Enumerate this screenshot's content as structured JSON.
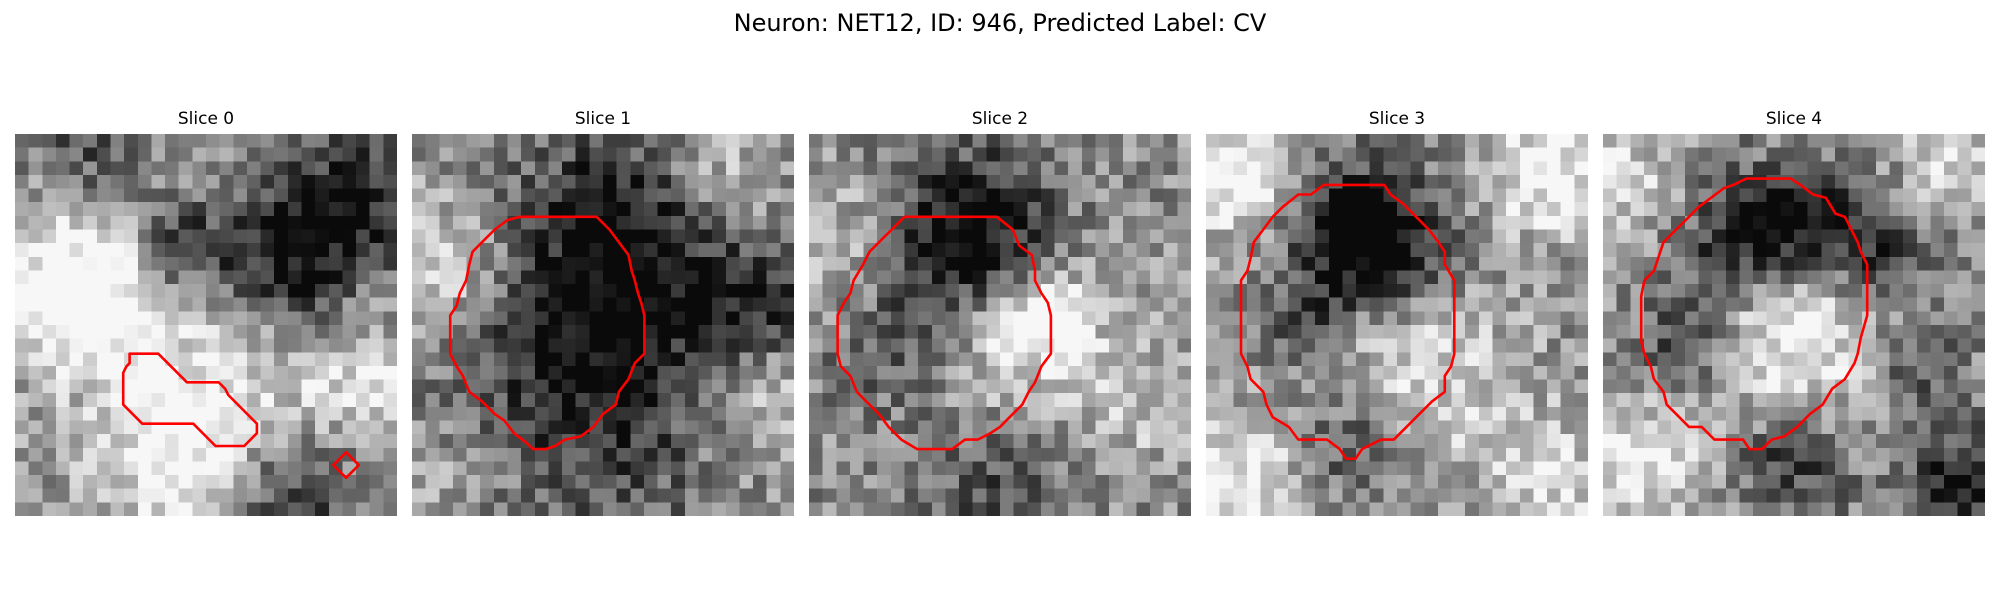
{
  "title": "Neuron: NET12, ID: 946, Predicted Label: CV",
  "contour_color": "#ff0000",
  "colormap": "gray",
  "grid_size": 28,
  "slices": [
    {
      "label": "Slice 0",
      "seed": 11,
      "blobs": [
        [
          0.2,
          0.38,
          0.18,
          0.4
        ],
        [
          0.16,
          0.42,
          0.1,
          0.3
        ],
        [
          0.6,
          0.7,
          0.25,
          0.35
        ],
        [
          0.45,
          0.85,
          0.15,
          0.35
        ],
        [
          0.7,
          0.35,
          0.14,
          -0.55
        ],
        [
          0.42,
          0.3,
          0.1,
          -0.4
        ],
        [
          0.88,
          0.18,
          0.12,
          -0.45
        ],
        [
          0.7,
          0.93,
          0.15,
          -0.5
        ],
        [
          0.18,
          0.06,
          0.1,
          -0.3
        ],
        [
          0.9,
          0.62,
          0.1,
          0.2
        ]
      ],
      "contours": [
        [
          [
            3.6,
            6.9
          ],
          [
            3.6,
            7.2
          ],
          [
            3.5,
            7.3
          ],
          [
            3.4,
            7.5
          ],
          [
            3.4,
            8.5
          ],
          [
            4.0,
            9.1
          ],
          [
            5.6,
            9.1
          ],
          [
            6.3,
            9.8
          ],
          [
            7.2,
            9.8
          ],
          [
            7.6,
            9.4
          ],
          [
            7.6,
            9.1
          ],
          [
            6.7,
            8.2
          ],
          [
            6.6,
            8.0
          ],
          [
            6.4,
            7.8
          ],
          [
            5.4,
            7.8
          ],
          [
            4.5,
            6.9
          ]
        ],
        [
          [
            10.4,
            10.0
          ],
          [
            10.0,
            10.4
          ],
          [
            10.4,
            10.8
          ],
          [
            10.8,
            10.4
          ]
        ]
      ]
    },
    {
      "label": "Slice 1",
      "seed": 23,
      "blobs": [
        [
          0.5,
          0.55,
          0.28,
          -0.55
        ],
        [
          0.55,
          0.22,
          0.16,
          -0.3
        ],
        [
          0.1,
          0.35,
          0.14,
          0.4
        ],
        [
          0.9,
          0.7,
          0.14,
          0.3
        ],
        [
          0.8,
          0.1,
          0.12,
          0.25
        ],
        [
          0.9,
          0.45,
          0.1,
          -0.3
        ],
        [
          0.12,
          0.85,
          0.14,
          0.15
        ]
      ],
      "contours": [
        [
          [
            4.5,
            2.6
          ],
          [
            5.8,
            2.6
          ],
          [
            6.2,
            3.0
          ],
          [
            6.5,
            3.4
          ],
          [
            6.8,
            3.8
          ],
          [
            6.9,
            4.3
          ],
          [
            7.0,
            4.6
          ],
          [
            7.1,
            5.0
          ],
          [
            7.2,
            5.3
          ],
          [
            7.3,
            5.7
          ],
          [
            7.3,
            6.9
          ],
          [
            7.0,
            7.2
          ],
          [
            6.8,
            7.7
          ],
          [
            6.5,
            8.1
          ],
          [
            6.4,
            8.5
          ],
          [
            6.0,
            8.8
          ],
          [
            5.7,
            9.2
          ],
          [
            5.3,
            9.5
          ],
          [
            4.8,
            9.6
          ],
          [
            4.5,
            9.8
          ],
          [
            4.2,
            9.9
          ],
          [
            3.8,
            9.9
          ],
          [
            3.6,
            9.7
          ],
          [
            3.2,
            9.4
          ],
          [
            2.9,
            9.0
          ],
          [
            2.6,
            8.8
          ],
          [
            2.2,
            8.4
          ],
          [
            1.8,
            8.1
          ],
          [
            1.6,
            7.6
          ],
          [
            1.4,
            7.3
          ],
          [
            1.2,
            6.9
          ],
          [
            1.2,
            6.6
          ],
          [
            1.2,
            5.7
          ],
          [
            1.4,
            5.4
          ],
          [
            1.5,
            5.0
          ],
          [
            1.7,
            4.6
          ],
          [
            1.8,
            4.1
          ],
          [
            1.9,
            3.7
          ],
          [
            2.2,
            3.4
          ],
          [
            2.6,
            3.0
          ],
          [
            3.0,
            2.7
          ],
          [
            3.4,
            2.6
          ]
        ]
      ]
    },
    {
      "label": "Slice 2",
      "seed": 37,
      "blobs": [
        [
          0.52,
          0.52,
          0.16,
          0.45
        ],
        [
          0.62,
          0.47,
          0.06,
          0.45
        ],
        [
          0.4,
          0.35,
          0.15,
          -0.45
        ],
        [
          0.45,
          0.22,
          0.14,
          -0.35
        ],
        [
          0.22,
          0.55,
          0.12,
          -0.2
        ],
        [
          0.1,
          0.3,
          0.12,
          0.25
        ],
        [
          0.85,
          0.7,
          0.14,
          0.2
        ],
        [
          0.5,
          0.9,
          0.16,
          -0.25
        ]
      ],
      "contours": [
        [
          [
            4.5,
            2.6
          ],
          [
            5.9,
            2.6
          ],
          [
            6.4,
            3.0
          ],
          [
            6.6,
            3.5
          ],
          [
            7.0,
            3.8
          ],
          [
            7.1,
            4.3
          ],
          [
            7.1,
            4.6
          ],
          [
            7.3,
            5.0
          ],
          [
            7.5,
            5.3
          ],
          [
            7.6,
            5.7
          ],
          [
            7.6,
            6.9
          ],
          [
            7.3,
            7.3
          ],
          [
            7.1,
            7.8
          ],
          [
            6.9,
            8.1
          ],
          [
            6.7,
            8.5
          ],
          [
            6.4,
            8.8
          ],
          [
            6.0,
            9.2
          ],
          [
            5.7,
            9.4
          ],
          [
            5.3,
            9.6
          ],
          [
            4.9,
            9.6
          ],
          [
            4.5,
            9.9
          ],
          [
            3.4,
            9.9
          ],
          [
            2.9,
            9.6
          ],
          [
            2.5,
            9.2
          ],
          [
            2.2,
            8.8
          ],
          [
            1.8,
            8.4
          ],
          [
            1.5,
            8.1
          ],
          [
            1.3,
            7.6
          ],
          [
            1.0,
            7.3
          ],
          [
            0.9,
            6.9
          ],
          [
            0.9,
            5.7
          ],
          [
            1.1,
            5.3
          ],
          [
            1.3,
            5.0
          ],
          [
            1.4,
            4.6
          ],
          [
            1.7,
            4.1
          ],
          [
            1.9,
            3.7
          ],
          [
            2.2,
            3.4
          ],
          [
            2.6,
            3.0
          ],
          [
            3.0,
            2.6
          ],
          [
            3.5,
            2.6
          ]
        ]
      ]
    },
    {
      "label": "Slice 3",
      "seed": 53,
      "blobs": [
        [
          0.55,
          0.62,
          0.18,
          0.35
        ],
        [
          0.45,
          0.3,
          0.14,
          -0.5
        ],
        [
          0.38,
          0.25,
          0.1,
          -0.4
        ],
        [
          0.25,
          0.5,
          0.08,
          -0.25
        ],
        [
          0.4,
          0.8,
          0.1,
          -0.35
        ],
        [
          0.08,
          0.1,
          0.12,
          0.45
        ],
        [
          0.9,
          0.1,
          0.12,
          0.45
        ],
        [
          0.08,
          0.9,
          0.12,
          0.4
        ],
        [
          0.9,
          0.9,
          0.12,
          0.3
        ]
      ],
      "contours": [
        [
          [
            3.7,
            1.6
          ],
          [
            5.6,
            1.6
          ],
          [
            5.8,
            1.9
          ],
          [
            6.2,
            2.2
          ],
          [
            6.6,
            2.6
          ],
          [
            7.0,
            3.0
          ],
          [
            7.3,
            3.4
          ],
          [
            7.5,
            3.7
          ],
          [
            7.5,
            4.1
          ],
          [
            7.8,
            4.6
          ],
          [
            7.8,
            6.9
          ],
          [
            7.7,
            7.3
          ],
          [
            7.5,
            7.6
          ],
          [
            7.5,
            8.1
          ],
          [
            7.1,
            8.4
          ],
          [
            6.7,
            8.8
          ],
          [
            6.3,
            9.2
          ],
          [
            5.9,
            9.6
          ],
          [
            5.5,
            9.6
          ],
          [
            4.9,
            9.9
          ],
          [
            4.7,
            10.2
          ],
          [
            4.4,
            10.2
          ],
          [
            4.2,
            9.9
          ],
          [
            3.8,
            9.6
          ],
          [
            2.9,
            9.6
          ],
          [
            2.6,
            9.2
          ],
          [
            2.1,
            8.9
          ],
          [
            1.9,
            8.5
          ],
          [
            1.8,
            8.1
          ],
          [
            1.4,
            7.7
          ],
          [
            1.3,
            7.3
          ],
          [
            1.1,
            6.9
          ],
          [
            1.1,
            4.6
          ],
          [
            1.3,
            4.3
          ],
          [
            1.4,
            3.9
          ],
          [
            1.5,
            3.4
          ],
          [
            1.8,
            3.0
          ],
          [
            2.1,
            2.6
          ],
          [
            2.4,
            2.3
          ],
          [
            2.9,
            1.9
          ],
          [
            3.3,
            1.9
          ]
        ]
      ]
    },
    {
      "label": "Slice 4",
      "seed": 71,
      "blobs": [
        [
          0.52,
          0.55,
          0.16,
          0.4
        ],
        [
          0.5,
          0.22,
          0.1,
          -0.45
        ],
        [
          0.35,
          0.28,
          0.1,
          -0.4
        ],
        [
          0.7,
          0.3,
          0.1,
          -0.4
        ],
        [
          0.22,
          0.55,
          0.08,
          -0.35
        ],
        [
          0.82,
          0.6,
          0.08,
          -0.3
        ],
        [
          0.5,
          0.85,
          0.1,
          -0.35
        ],
        [
          0.92,
          0.9,
          0.1,
          -0.4
        ],
        [
          0.08,
          0.85,
          0.12,
          0.4
        ],
        [
          0.92,
          0.08,
          0.1,
          0.3
        ],
        [
          0.06,
          0.12,
          0.1,
          0.3
        ]
      ],
      "contours": [
        [
          [
            4.5,
            1.4
          ],
          [
            5.9,
            1.4
          ],
          [
            6.2,
            1.6
          ],
          [
            6.6,
            1.9
          ],
          [
            7.0,
            2.0
          ],
          [
            7.3,
            2.5
          ],
          [
            7.6,
            2.6
          ],
          [
            7.8,
            3.0
          ],
          [
            8.0,
            3.4
          ],
          [
            8.1,
            3.7
          ],
          [
            8.3,
            4.1
          ],
          [
            8.3,
            5.7
          ],
          [
            8.1,
            6.4
          ],
          [
            8.0,
            6.9
          ],
          [
            7.9,
            7.2
          ],
          [
            7.6,
            7.7
          ],
          [
            7.2,
            8.0
          ],
          [
            6.9,
            8.5
          ],
          [
            6.5,
            8.8
          ],
          [
            6.1,
            9.2
          ],
          [
            5.7,
            9.5
          ],
          [
            5.3,
            9.6
          ],
          [
            5.0,
            9.9
          ],
          [
            4.6,
            9.9
          ],
          [
            4.4,
            9.6
          ],
          [
            3.5,
            9.6
          ],
          [
            3.1,
            9.2
          ],
          [
            2.7,
            9.2
          ],
          [
            2.3,
            8.8
          ],
          [
            2.0,
            8.5
          ],
          [
            1.9,
            8.1
          ],
          [
            1.6,
            7.7
          ],
          [
            1.5,
            7.3
          ],
          [
            1.3,
            6.9
          ],
          [
            1.2,
            6.5
          ],
          [
            1.2,
            5.1
          ],
          [
            1.3,
            4.6
          ],
          [
            1.6,
            4.3
          ],
          [
            1.8,
            3.7
          ],
          [
            1.9,
            3.4
          ],
          [
            2.3,
            3.0
          ],
          [
            2.7,
            2.6
          ],
          [
            3.0,
            2.3
          ],
          [
            3.4,
            2.0
          ],
          [
            3.8,
            1.7
          ],
          [
            4.1,
            1.6
          ]
        ]
      ]
    }
  ]
}
